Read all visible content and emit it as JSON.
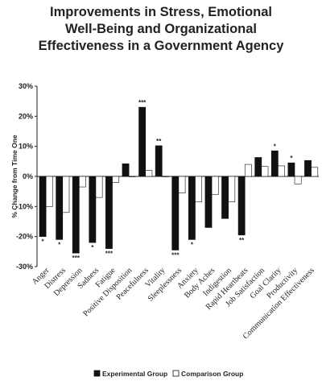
{
  "chart_data": {
    "type": "bar",
    "title_lines": [
      "Improvements in Stress, Emotional",
      "Well-Being and Organizational",
      "Effectiveness in a Government Agency"
    ],
    "ylabel": "% Change from Time One",
    "ylim": [
      -30,
      30
    ],
    "yticks": [
      30,
      20,
      10,
      0,
      -10,
      -20,
      -30
    ],
    "ytick_labels": [
      "30%",
      "20%",
      "10%",
      "0%",
      "-10%",
      "-20%",
      "-30%"
    ],
    "categories": [
      "Anger",
      "Distress",
      "Depression",
      "Sadness",
      "Fatigue",
      "Positive Disposition",
      "Peacefulness",
      "Vitality",
      "Sleeplessness",
      "Anxiety",
      "Body Aches",
      "Indigestion",
      "Rapid Heartbeats",
      "Job Satisfaction",
      "Goal Clarity",
      "Productivity",
      "Communication Effectiveness"
    ],
    "series": [
      {
        "name": "Experimental Group",
        "color": "#111111",
        "values": [
          -20,
          -21,
          -25.5,
          -22,
          -24,
          4.2,
          23,
          10.2,
          -24.5,
          -21,
          -17,
          -14,
          -19.5,
          6.3,
          8.5,
          4.5,
          5.3
        ]
      },
      {
        "name": "Comparison Group",
        "color": "#ffffff",
        "values": [
          -10,
          -12,
          -3.5,
          -7,
          -2,
          0,
          2,
          0,
          -5.5,
          -8.5,
          -6,
          -8.5,
          4,
          3.3,
          3.5,
          -2.5,
          3
        ]
      }
    ],
    "significance": [
      "*",
      "*",
      "***",
      "*",
      "***",
      "",
      "***",
      "**",
      "***",
      "*",
      "",
      "",
      "**",
      "",
      "*",
      "*",
      ""
    ],
    "grid": false,
    "legend": "bottom"
  }
}
